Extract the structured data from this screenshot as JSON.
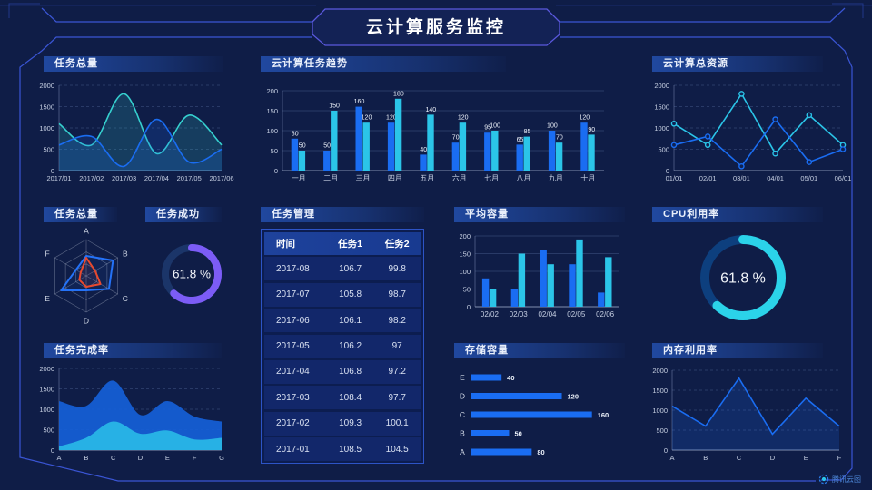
{
  "header": {
    "title": "云计算服务监控"
  },
  "brand": {
    "name": "腾讯云图"
  },
  "colors": {
    "blue": "#1a6df2",
    "cyan": "#2bc5e8",
    "teal": "#36d0cf",
    "cyan_bright": "#2bd3e9",
    "purple": "#7c5cf6",
    "red": "#e8492e",
    "radar_blue": "#2472f8",
    "area_blue": "#155fd8",
    "area_cyan": "#28b6e6",
    "track_dark": "#1b3569",
    "track_blue": "#0d3f7e"
  },
  "chart_data": [
    {
      "id": "task_total_line",
      "title": "任务总量",
      "type": "line",
      "smooth": true,
      "markers": false,
      "x": [
        "2017/01",
        "2017/02",
        "2017/03",
        "2017/04",
        "2017/05",
        "2017/06"
      ],
      "ylim": [
        0,
        2000
      ],
      "yticks": [
        0,
        500,
        1000,
        1500,
        2000
      ],
      "grid": "dashed",
      "series": [
        {
          "name": "series-teal",
          "color": "teal",
          "fill": true,
          "values": [
            1100,
            600,
            1800,
            400,
            1300,
            600
          ]
        },
        {
          "name": "series-blue",
          "color": "blue",
          "fill": true,
          "values": [
            600,
            800,
            100,
            1200,
            200,
            500
          ]
        }
      ]
    },
    {
      "id": "cloud_task_bar",
      "title": "云计算任务趋势",
      "type": "bar",
      "show_labels": true,
      "categories": [
        "一月",
        "二月",
        "三月",
        "四月",
        "五月",
        "六月",
        "七月",
        "八月",
        "九月",
        "十月"
      ],
      "ylim": [
        0,
        200
      ],
      "yticks": [
        0,
        50,
        100,
        150,
        200
      ],
      "series": [
        {
          "name": "series-blue",
          "color": "blue",
          "values": [
            80,
            50,
            160,
            120,
            40,
            70,
            95,
            65,
            100,
            120
          ]
        },
        {
          "name": "series-cyan",
          "color": "cyan",
          "values": [
            50,
            150,
            120,
            180,
            140,
            120,
            100,
            85,
            70,
            90
          ]
        }
      ]
    },
    {
      "id": "cloud_resource_line",
      "title": "云计算总资源",
      "type": "line",
      "smooth": false,
      "markers": true,
      "x": [
        "01/01",
        "02/01",
        "03/01",
        "04/01",
        "05/01",
        "06/01"
      ],
      "ylim": [
        0,
        2000
      ],
      "yticks": [
        0,
        500,
        1000,
        1500,
        2000
      ],
      "grid": "dashed",
      "series": [
        {
          "name": "series-cyan",
          "color": "cyan",
          "fill": false,
          "values": [
            1100,
            600,
            1800,
            400,
            1300,
            600
          ]
        },
        {
          "name": "series-blue",
          "color": "blue",
          "fill": false,
          "values": [
            600,
            800,
            100,
            1200,
            200,
            500
          ]
        }
      ]
    },
    {
      "id": "task_radar",
      "title": "任务总量",
      "type": "radar",
      "axes": [
        "A",
        "B",
        "C",
        "D",
        "E",
        "F"
      ],
      "max": 100,
      "series": [
        {
          "name": "series-blue",
          "color": "radar_blue",
          "values": [
            55,
            85,
            72,
            40,
            80,
            33
          ]
        },
        {
          "name": "series-red",
          "color": "red",
          "values": [
            50,
            28,
            45,
            30,
            22,
            18
          ]
        }
      ]
    },
    {
      "id": "task_success_gauge",
      "title": "任务成功",
      "type": "donut",
      "value": 61.8,
      "label": "61.8 %",
      "color": "purple",
      "track": "track_dark"
    },
    {
      "id": "task_table",
      "title": "任务管理",
      "type": "table",
      "headers": [
        "时间",
        "任务1",
        "任务2"
      ],
      "rows": [
        [
          "2017-08",
          "106.7",
          "99.8"
        ],
        [
          "2017-07",
          "105.8",
          "98.7"
        ],
        [
          "2017-06",
          "106.1",
          "98.2"
        ],
        [
          "2017-05",
          "106.2",
          "97"
        ],
        [
          "2017-04",
          "106.8",
          "97.2"
        ],
        [
          "2017-03",
          "108.4",
          "97.7"
        ],
        [
          "2017-02",
          "109.3",
          "100.1"
        ],
        [
          "2017-01",
          "108.5",
          "104.5"
        ]
      ]
    },
    {
      "id": "avg_capacity_bar",
      "title": "平均容量",
      "type": "bar",
      "show_labels": false,
      "categories": [
        "02/02",
        "02/03",
        "02/04",
        "02/05",
        "02/06"
      ],
      "ylim": [
        0,
        200
      ],
      "yticks": [
        0,
        50,
        100,
        150,
        200
      ],
      "series": [
        {
          "name": "series-blue",
          "color": "blue",
          "values": [
            80,
            50,
            160,
            120,
            40
          ]
        },
        {
          "name": "series-cyan",
          "color": "cyan",
          "values": [
            50,
            150,
            120,
            190,
            140
          ]
        }
      ]
    },
    {
      "id": "cpu_gauge",
      "title": "CPU利用率",
      "type": "donut",
      "value": 61.8,
      "label": "61.8 %",
      "color": "cyan_bright",
      "track": "track_blue"
    },
    {
      "id": "task_completion_area",
      "title": "任务完成率",
      "type": "area",
      "x": [
        "A",
        "B",
        "C",
        "D",
        "E",
        "F",
        "G"
      ],
      "ylim": [
        0,
        2000
      ],
      "yticks": [
        0,
        500,
        1000,
        1500,
        2000
      ],
      "grid": "dashed",
      "series": [
        {
          "name": "series-blue",
          "color": "area_blue",
          "opacity": 0.92,
          "values": [
            1200,
            1080,
            1700,
            860,
            1200,
            820,
            700
          ]
        },
        {
          "name": "series-cyan",
          "color": "area_cyan",
          "opacity": 0.95,
          "values": [
            90,
            300,
            700,
            400,
            480,
            260,
            300
          ]
        }
      ]
    },
    {
      "id": "storage_hbar",
      "title": "存储容量",
      "type": "hbar",
      "categories": [
        "E",
        "D",
        "C",
        "B",
        "A"
      ],
      "values": [
        40,
        120,
        160,
        50,
        80
      ],
      "max": 170
    },
    {
      "id": "memory_line",
      "title": "内存利用率",
      "type": "line",
      "smooth": false,
      "markers": false,
      "x": [
        "A",
        "B",
        "C",
        "D",
        "E",
        "F"
      ],
      "ylim": [
        0,
        2000
      ],
      "yticks": [
        0,
        500,
        1000,
        1500,
        2000
      ],
      "grid": "dashed",
      "series": [
        {
          "name": "series-blue",
          "color": "blue",
          "fill": true,
          "values": [
            1100,
            600,
            1800,
            400,
            1300,
            600
          ]
        }
      ]
    }
  ]
}
